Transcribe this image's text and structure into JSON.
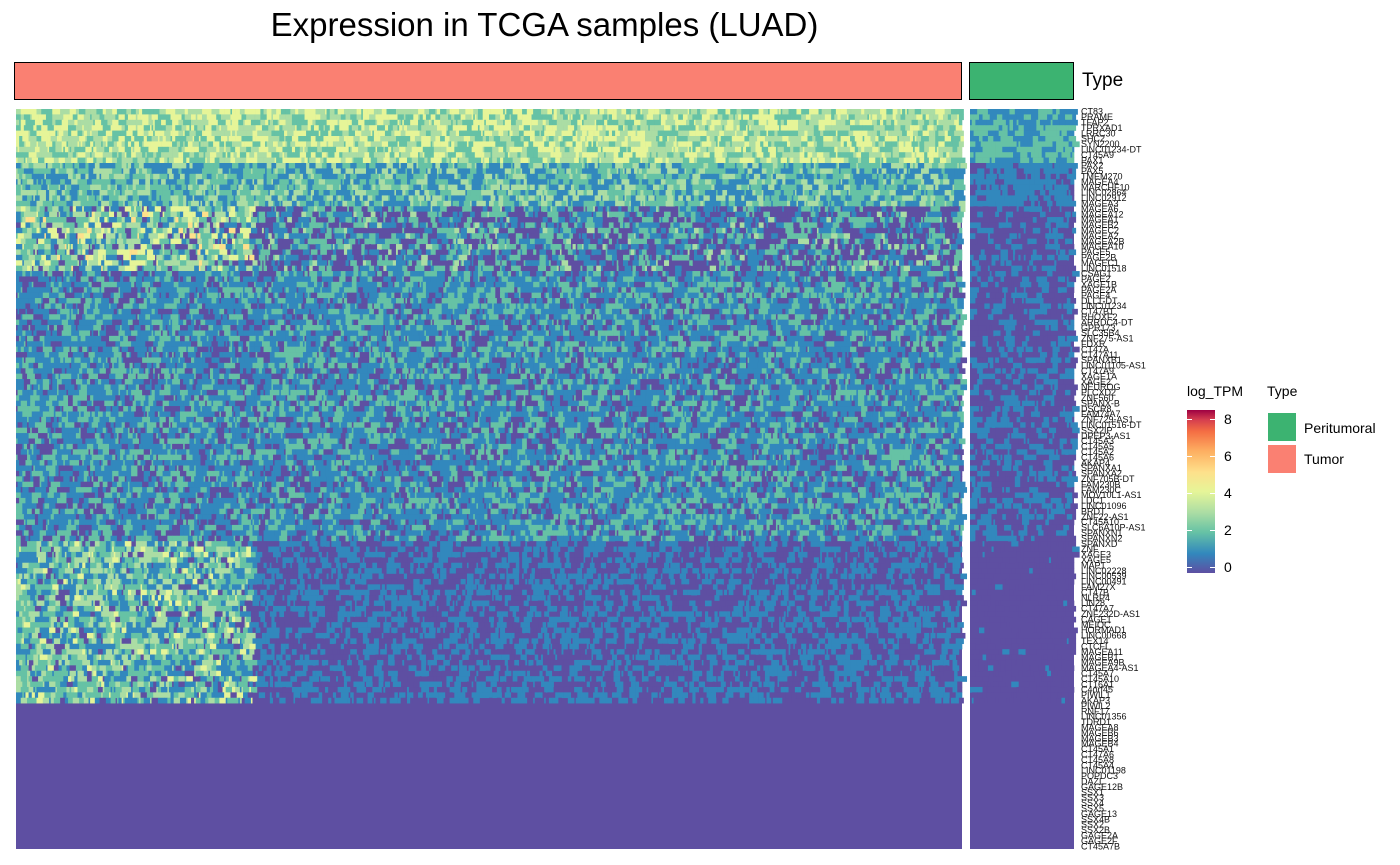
{
  "chart_data": {
    "type": "heatmap",
    "title": "Expression in TCGA samples (LUAD)",
    "top_annotation": {
      "label": "Type",
      "groups": [
        {
          "name": "Tumor",
          "color": "#FA8072",
          "n_columns": 600
        },
        {
          "name": "Peritumoral",
          "color": "#3CB371",
          "n_columns": 58
        }
      ]
    },
    "rows": [
      "CT83",
      "PRAME",
      "TFAP2",
      "TPRXAD1",
      "LRRC30",
      "SHC2",
      "SYN2200",
      "LINC01234-DT",
      "CT45A9",
      "PAX1",
      "PAX2",
      "PAX5",
      "TMEM270",
      "MAGEA4",
      "MARCHF10",
      "LINC02864",
      "LINC02912",
      "MAGEA3",
      "MAGEA6",
      "MAGEA12",
      "MAGEA1",
      "MAGEB2",
      "MAGEC2",
      "MAGEA2",
      "MAGEA2B",
      "MAGEA10",
      "PAGE5",
      "PAGE2B",
      "MAGEC1",
      "LINC01518",
      "CSAG1",
      "PAGE2",
      "XAGE1B",
      "PAGE2A",
      "PAGE4",
      "DLL1-DT",
      "LINC01234",
      "CT47B1",
      "RHOXF2",
      "ARRDC4-DT",
      "GPR173",
      "SLC35B4",
      "ZNF275-AS1",
      "FDXR",
      "CT47A",
      "CT47A11",
      "SPANXB1",
      "LINC01105-AS1",
      "CT47A9",
      "XAGE1A",
      "XAGE2",
      "NEUROG",
      "PLCXD2",
      "ZNF560",
      "SPANX-B",
      "DSCR8",
      "FAM74A7",
      "ZNF729-AS1",
      "LINC01516-DT",
      "SSX2IP",
      "DPEP3-AS1",
      "CT45A3",
      "CT45A5",
      "CT45A2",
      "CT45A6",
      "AKAP4",
      "SPANXA1",
      "SPANXA2",
      "ZNF705B-DT",
      "FAM230B",
      "FAM230C",
      "MOV10L1-AS1",
      "LDC1",
      "LINC01096",
      "BRDT",
      "ZNF22-AS1",
      "CT45A10",
      "SLC6A10P-AS1",
      "SPANXN1",
      "SPANXN2",
      "SPANXD",
      "ZNF",
      "XAGE3",
      "XAGE5",
      "MAP1",
      "LINC02228",
      "LINC00539",
      "LINC00491",
      "FAM27X",
      "CT47B",
      "NLRP4",
      "LIN28",
      "CT47A7",
      "ZNF232D-AS1",
      "CAGE1",
      "MEIOC",
      "HORMAD1",
      "LINC00668",
      "TEX14",
      "CTCFL",
      "MAGEA11",
      "MAGEB1",
      "MAGEA9B",
      "MAGEA4-AS1",
      "CT45A7",
      "CT45A10",
      "CT16A1",
      "C4orf45",
      "PIWIL1",
      "AKAP3",
      "PIWIL2",
      "RNF17",
      "LINC01356",
      "TDRD1",
      "MAGEA8",
      "MAGEB6",
      "MAGEB3",
      "MAGEB4",
      "CT45A1",
      "CT47A6",
      "CT45A8",
      "CT45A4",
      "LINC01198",
      "POPDC3",
      "DAZL",
      "GAGE12B",
      "SSX1",
      "SSX3",
      "SSX4",
      "SSX5",
      "GAGE13",
      "SSX4B",
      "SSX2",
      "SSX2B",
      "GAGE2A",
      "GAGE2F",
      "CT45A7B"
    ],
    "color_scale": {
      "name": "log_TPM",
      "colors": [
        "#5E4FA2",
        "#3288BD",
        "#66C2A5",
        "#ABDDA4",
        "#E6F598",
        "#FEE08B",
        "#FDAE61",
        "#F46D43",
        "#D53E4F",
        "#9E0142"
      ],
      "range": [
        0,
        8.6
      ],
      "ticks": [
        0,
        2,
        4,
        6,
        8
      ]
    },
    "legend": {
      "placement": "right",
      "type_entries": [
        "Peritumoral",
        "Tumor"
      ]
    }
  },
  "legend_title_scale": "log_TPM",
  "legend_title_type": "Type",
  "tick_labels": [
    "8",
    "6",
    "4",
    "2",
    "0"
  ],
  "type_legend": {
    "peritumoral": "Peritumoral",
    "tumor": "Tumor"
  },
  "annotation_label": "Type"
}
